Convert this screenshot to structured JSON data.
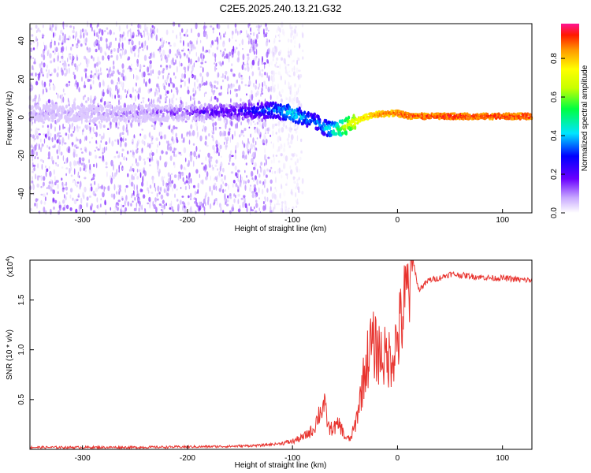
{
  "title": "C2E5.2025.240.13.21.G32",
  "colors": {
    "snr_line": "#e8332e",
    "frame": "#000000"
  },
  "chart_data": [
    {
      "type": "heatmap",
      "title": "C2E5.2025.240.13.21.G32",
      "xlabel": "Height of straight line (km)",
      "ylabel": "Frequency (Hz)",
      "xlim": [
        -350,
        128
      ],
      "ylim": [
        -50,
        49
      ],
      "xticks": [
        -300,
        -200,
        -100,
        0,
        100
      ],
      "yticks": [
        -40,
        -20,
        0,
        20,
        40
      ],
      "colorbar": {
        "label": "Normalized spectral amplitude",
        "range": [
          0.0,
          0.98
        ],
        "ticks": [
          0.0,
          0.2,
          0.4,
          0.6,
          0.8
        ]
      },
      "ridge": {
        "x": [
          -350,
          -300,
          -250,
          -200,
          -150,
          -120,
          -100,
          -90,
          -80,
          -70,
          -60,
          -50,
          -40,
          -30,
          -20,
          -10,
          0,
          10,
          30,
          60,
          90,
          128
        ],
        "freq": [
          2,
          2,
          2,
          2.5,
          3,
          4,
          2,
          0,
          -2,
          -5,
          -7,
          -5,
          -2,
          0,
          1.5,
          2,
          2,
          0.8,
          0.5,
          0.5,
          0.5,
          0.5
        ],
        "amplitude": [
          0.12,
          0.12,
          0.15,
          0.22,
          0.3,
          0.4,
          0.5,
          0.45,
          0.4,
          0.45,
          0.55,
          0.7,
          0.8,
          0.85,
          0.9,
          0.93,
          0.95,
          0.97,
          0.97,
          0.98,
          0.98,
          0.98
        ]
      },
      "noise_extent_x": [
        -350,
        -120
      ]
    },
    {
      "type": "line",
      "xlabel": "Height of straight line (km)",
      "ylabel": "SNR (10 * v/v)",
      "yscale_label": "(x10",
      "yscale_exp": "4",
      "yscale_close": ")",
      "xlim": [
        -350,
        128
      ],
      "ylim": [
        0,
        1.9
      ],
      "xticks": [
        -300,
        -200,
        -100,
        0,
        100
      ],
      "yticks": [
        0.5,
        1.0,
        1.5
      ],
      "series": [
        {
          "name": "SNR",
          "x": [
            -350,
            -300,
            -250,
            -200,
            -160,
            -130,
            -110,
            -100,
            -90,
            -80,
            -75,
            -70,
            -65,
            -60,
            -55,
            -50,
            -45,
            -40,
            -35,
            -30,
            -25,
            -20,
            -15,
            -10,
            -5,
            0,
            5,
            10,
            15,
            20,
            25,
            30,
            40,
            50,
            60,
            70,
            80,
            90,
            100,
            110,
            120,
            128
          ],
          "y": [
            0.02,
            0.02,
            0.02,
            0.025,
            0.03,
            0.04,
            0.06,
            0.08,
            0.12,
            0.2,
            0.35,
            0.45,
            0.2,
            0.22,
            0.25,
            0.12,
            0.1,
            0.25,
            0.55,
            0.85,
            1.05,
            1.0,
            0.95,
            0.9,
            0.95,
            1.1,
            1.35,
            1.6,
            1.9,
            1.6,
            1.65,
            1.7,
            1.72,
            1.76,
            1.75,
            1.74,
            1.73,
            1.72,
            1.72,
            1.71,
            1.7,
            1.7
          ]
        }
      ]
    }
  ]
}
